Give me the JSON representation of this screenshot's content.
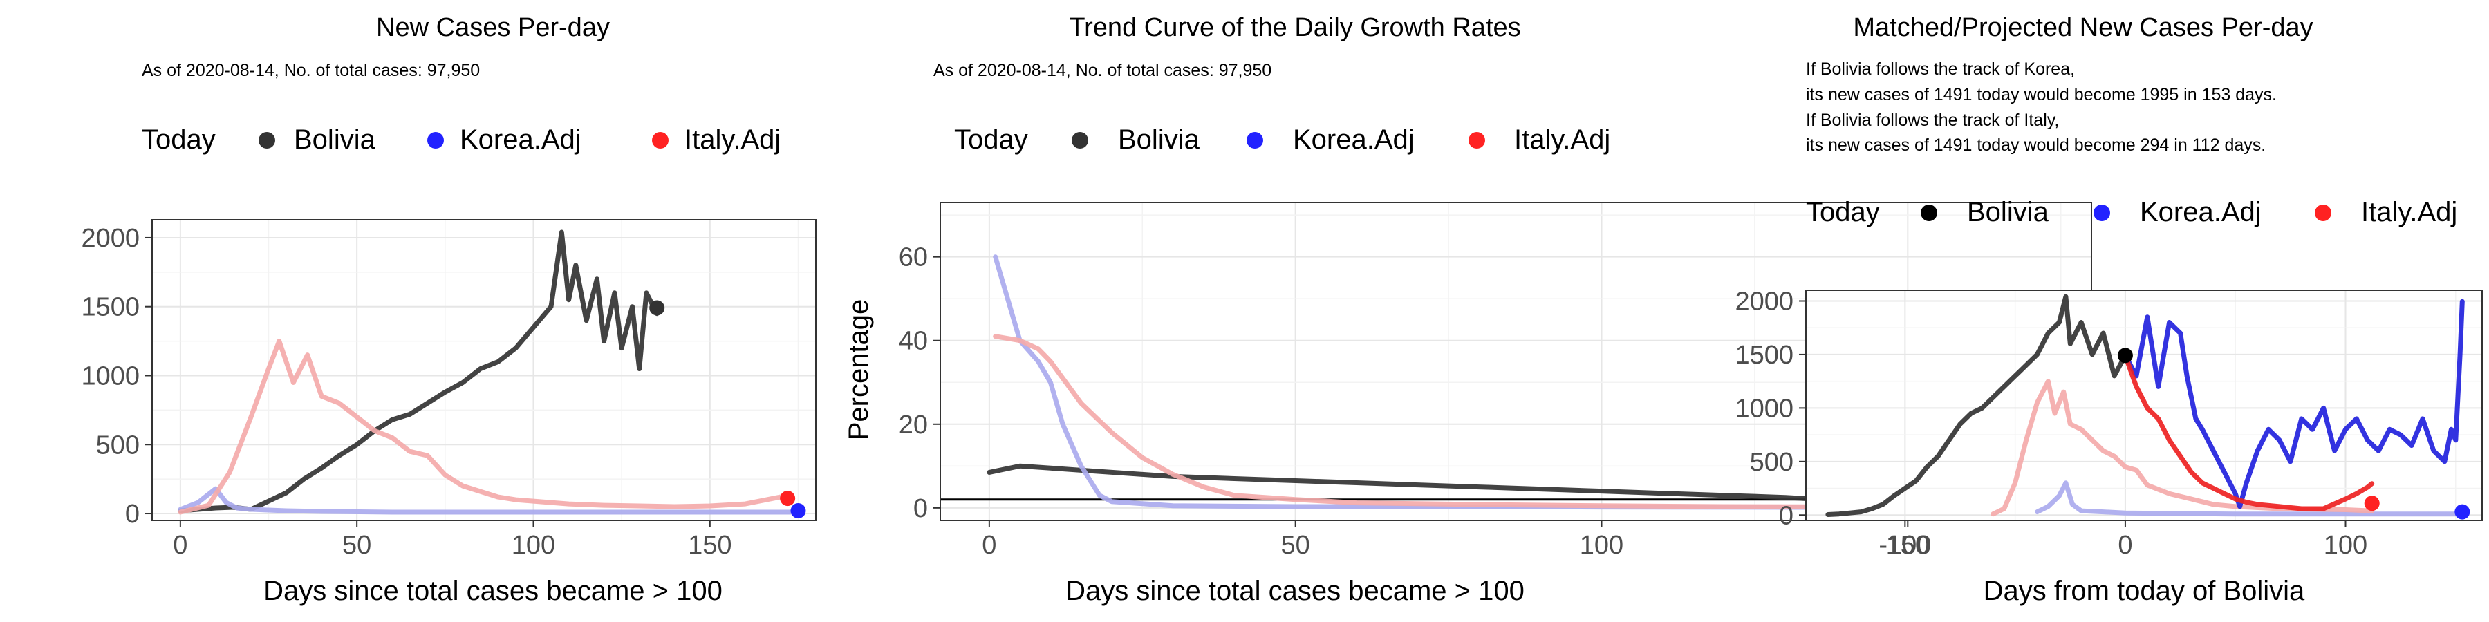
{
  "chart_data": [
    {
      "type": "line",
      "title": "New Cases Per-day",
      "subtitle": "As of 2020-08-14, No. of total cases: 97,950",
      "xlabel": "Days since total cases became > 100",
      "ylabel": "",
      "xlim": [
        -8,
        180
      ],
      "ylim": [
        -50,
        2130
      ],
      "xticks": [
        0,
        50,
        100,
        150
      ],
      "yticks": [
        0,
        500,
        1000,
        1500,
        2000
      ],
      "grid": true,
      "legend_position": "top",
      "legend": {
        "title": "Today",
        "items": [
          "Bolivia",
          "Korea.Adj",
          "Italy.Adj"
        ]
      },
      "series": [
        {
          "name": "Bolivia",
          "color": "#333333",
          "x": [
            0,
            5,
            10,
            15,
            20,
            25,
            30,
            35,
            40,
            45,
            50,
            55,
            60,
            65,
            70,
            75,
            80,
            85,
            90,
            95,
            100,
            105,
            108,
            110,
            112,
            115,
            118,
            120,
            123,
            125,
            128,
            130,
            132,
            135
          ],
          "y": [
            20,
            30,
            40,
            45,
            30,
            90,
            150,
            250,
            330,
            420,
            500,
            600,
            680,
            720,
            800,
            880,
            950,
            1050,
            1100,
            1200,
            1350,
            1500,
            2040,
            1550,
            1800,
            1400,
            1700,
            1250,
            1600,
            1200,
            1500,
            1050,
            1600,
            1450
          ]
        },
        {
          "name": "Korea.Adj",
          "color": "#aaaaee",
          "x": [
            0,
            5,
            10,
            13,
            16,
            20,
            25,
            30,
            40,
            60,
            80,
            100,
            120,
            140,
            160,
            175
          ],
          "y": [
            30,
            80,
            180,
            80,
            40,
            30,
            25,
            20,
            15,
            10,
            10,
            10,
            10,
            10,
            10,
            10
          ]
        },
        {
          "name": "Italy.Adj",
          "color": "#f4aaaa",
          "x": [
            0,
            8,
            14,
            20,
            25,
            28,
            32,
            36,
            40,
            45,
            50,
            55,
            60,
            65,
            70,
            75,
            80,
            85,
            90,
            95,
            100,
            110,
            120,
            130,
            140,
            150,
            160,
            170
          ],
          "y": [
            10,
            60,
            300,
            700,
            1050,
            1250,
            950,
            1150,
            850,
            800,
            700,
            600,
            550,
            450,
            420,
            280,
            200,
            160,
            120,
            100,
            90,
            70,
            60,
            55,
            50,
            55,
            70,
            120
          ]
        }
      ],
      "today_points": [
        {
          "name": "Bolivia",
          "x": 135,
          "y": 1491,
          "color": "#333333"
        },
        {
          "name": "Korea.Adj",
          "x": 175,
          "y": 20,
          "color": "#2222ff"
        },
        {
          "name": "Italy.Adj",
          "x": 172,
          "y": 110,
          "color": "#ff2222"
        }
      ]
    },
    {
      "type": "line",
      "title": "Trend Curve of the Daily Growth Rates",
      "subtitle": "As of 2020-08-14, No. of total cases: 97,950",
      "xlabel": "Days since total cases became > 100",
      "ylabel": "Percentage",
      "xlim": [
        -8,
        180
      ],
      "ylim": [
        -3,
        73
      ],
      "xticks": [
        0,
        50,
        100,
        150
      ],
      "yticks": [
        0,
        20,
        40,
        60
      ],
      "grid": true,
      "reference_line": 2,
      "legend_position": "top",
      "legend": {
        "title": "Today",
        "items": [
          "Bolivia",
          "Korea.Adj",
          "Italy.Adj"
        ]
      },
      "series": [
        {
          "name": "Bolivia",
          "color": "#333333",
          "x": [
            0,
            5,
            10,
            15,
            20,
            25,
            30,
            40,
            50,
            60,
            70,
            80,
            90,
            100,
            110,
            120,
            130,
            136
          ],
          "y": [
            8.5,
            10,
            9.5,
            9,
            8.5,
            8,
            7.5,
            7,
            6.5,
            6,
            5.5,
            5,
            4.5,
            4,
            3.5,
            3,
            2.5,
            2
          ]
        },
        {
          "name": "Korea.Adj",
          "color": "#aaaaee",
          "x": [
            1,
            3,
            5,
            8,
            10,
            12,
            15,
            18,
            20,
            25,
            30,
            50,
            100,
            150,
            175
          ],
          "y": [
            60,
            50,
            40,
            35,
            30,
            20,
            10,
            3,
            1.5,
            1,
            0.5,
            0.3,
            0.2,
            0.1,
            0.1
          ]
        },
        {
          "name": "Italy.Adj",
          "color": "#f4aaaa",
          "x": [
            1,
            5,
            8,
            10,
            15,
            20,
            25,
            30,
            35,
            40,
            50,
            60,
            80,
            100,
            120,
            150,
            172
          ],
          "y": [
            41,
            40,
            38,
            35,
            25,
            18,
            12,
            8,
            5,
            3,
            2,
            1.2,
            0.8,
            0.5,
            0.3,
            0.2,
            0.1
          ]
        }
      ],
      "today_points": [
        {
          "name": "Bolivia",
          "x": 136,
          "y": 2,
          "color": "#333333"
        },
        {
          "name": "Korea.Adj",
          "x": 176,
          "y": 0.2,
          "color": "#2222ff"
        },
        {
          "name": "Italy.Adj",
          "x": 173,
          "y": 0.2,
          "color": "#ff2222"
        }
      ]
    },
    {
      "type": "line",
      "title": "Matched/Projected New Cases Per-day",
      "subtitle_lines": [
        "If Bolivia follows the track of Korea,",
        "its new cases of 1491 today would become 1995 in 153 days.",
        "If Bolivia follows the track of Italy,",
        "its new cases of 1491 today would become 294 in 112 days."
      ],
      "xlabel": "Days from today of Bolivia",
      "ylabel": "",
      "xlim": [
        -145,
        162
      ],
      "ylim": [
        -50,
        2100
      ],
      "xticks": [
        -100,
        0,
        100
      ],
      "yticks": [
        0,
        500,
        1000,
        1500,
        2000
      ],
      "grid": true,
      "legend_position": "top",
      "legend": {
        "title": "Today",
        "items": [
          "Bolivia",
          "Korea.Adj",
          "Italy.Adj"
        ]
      },
      "series": [
        {
          "name": "Bolivia",
          "color": "#333333",
          "x": [
            -135,
            -130,
            -125,
            -120,
            -115,
            -110,
            -105,
            -100,
            -95,
            -90,
            -85,
            -80,
            -75,
            -70,
            -65,
            -60,
            -55,
            -50,
            -45,
            -40,
            -35,
            -30,
            -27,
            -25,
            -20,
            -15,
            -10,
            -5,
            0
          ],
          "y": [
            5,
            10,
            20,
            30,
            60,
            100,
            180,
            250,
            320,
            450,
            550,
            700,
            850,
            950,
            1000,
            1100,
            1200,
            1300,
            1400,
            1500,
            1700,
            1800,
            2040,
            1600,
            1800,
            1500,
            1700,
            1300,
            1491
          ]
        },
        {
          "name": "Korea.Adj (faded)",
          "color": "#aaaaee",
          "x": [
            -40,
            -35,
            -30,
            -27,
            -24,
            -20,
            -10,
            0,
            20,
            50,
            80,
            100,
            120,
            150
          ],
          "y": [
            30,
            80,
            180,
            300,
            100,
            40,
            30,
            20,
            15,
            10,
            10,
            10,
            10,
            10
          ]
        },
        {
          "name": "Italy.Adj (faded)",
          "color": "#f4aaaa",
          "x": [
            -60,
            -55,
            -50,
            -45,
            -40,
            -35,
            -32,
            -28,
            -25,
            -20,
            -15,
            -10,
            -5,
            0,
            5,
            10,
            20,
            30,
            40,
            50,
            70,
            100,
            112
          ],
          "y": [
            10,
            60,
            300,
            700,
            1050,
            1250,
            950,
            1150,
            850,
            800,
            700,
            600,
            550,
            450,
            420,
            280,
            200,
            150,
            100,
            80,
            60,
            50,
            40
          ]
        },
        {
          "name": "Korea.Adj",
          "color": "#2222dd",
          "x": [
            0,
            5,
            10,
            15,
            20,
            25,
            28,
            32,
            35,
            40,
            45,
            50,
            52,
            55,
            60,
            65,
            70,
            75,
            80,
            85,
            90,
            95,
            100,
            105,
            110,
            115,
            120,
            125,
            130,
            135,
            140,
            145,
            148,
            150,
            152,
            153
          ],
          "y": [
            1491,
            1300,
            1850,
            1200,
            1800,
            1700,
            1300,
            900,
            800,
            600,
            400,
            200,
            80,
            300,
            600,
            800,
            700,
            500,
            900,
            800,
            1000,
            600,
            800,
            900,
            700,
            600,
            800,
            750,
            650,
            900,
            600,
            500,
            800,
            700,
            1500,
            1995
          ]
        },
        {
          "name": "Italy.Adj",
          "color": "#ee2222",
          "x": [
            0,
            5,
            10,
            15,
            20,
            25,
            30,
            35,
            40,
            45,
            50,
            55,
            60,
            70,
            80,
            90,
            100,
            105,
            110,
            112
          ],
          "y": [
            1491,
            1200,
            1000,
            900,
            700,
            550,
            400,
            300,
            250,
            200,
            150,
            120,
            100,
            80,
            60,
            60,
            150,
            200,
            260,
            294
          ]
        }
      ],
      "today_points": [
        {
          "name": "Bolivia",
          "x": 0,
          "y": 1491,
          "color": "#000000"
        },
        {
          "name": "Korea.Adj",
          "x": 153,
          "y": 30,
          "color": "#2222ff"
        },
        {
          "name": "Italy.Adj",
          "x": 112,
          "y": 110,
          "color": "#ff2222"
        }
      ]
    }
  ]
}
